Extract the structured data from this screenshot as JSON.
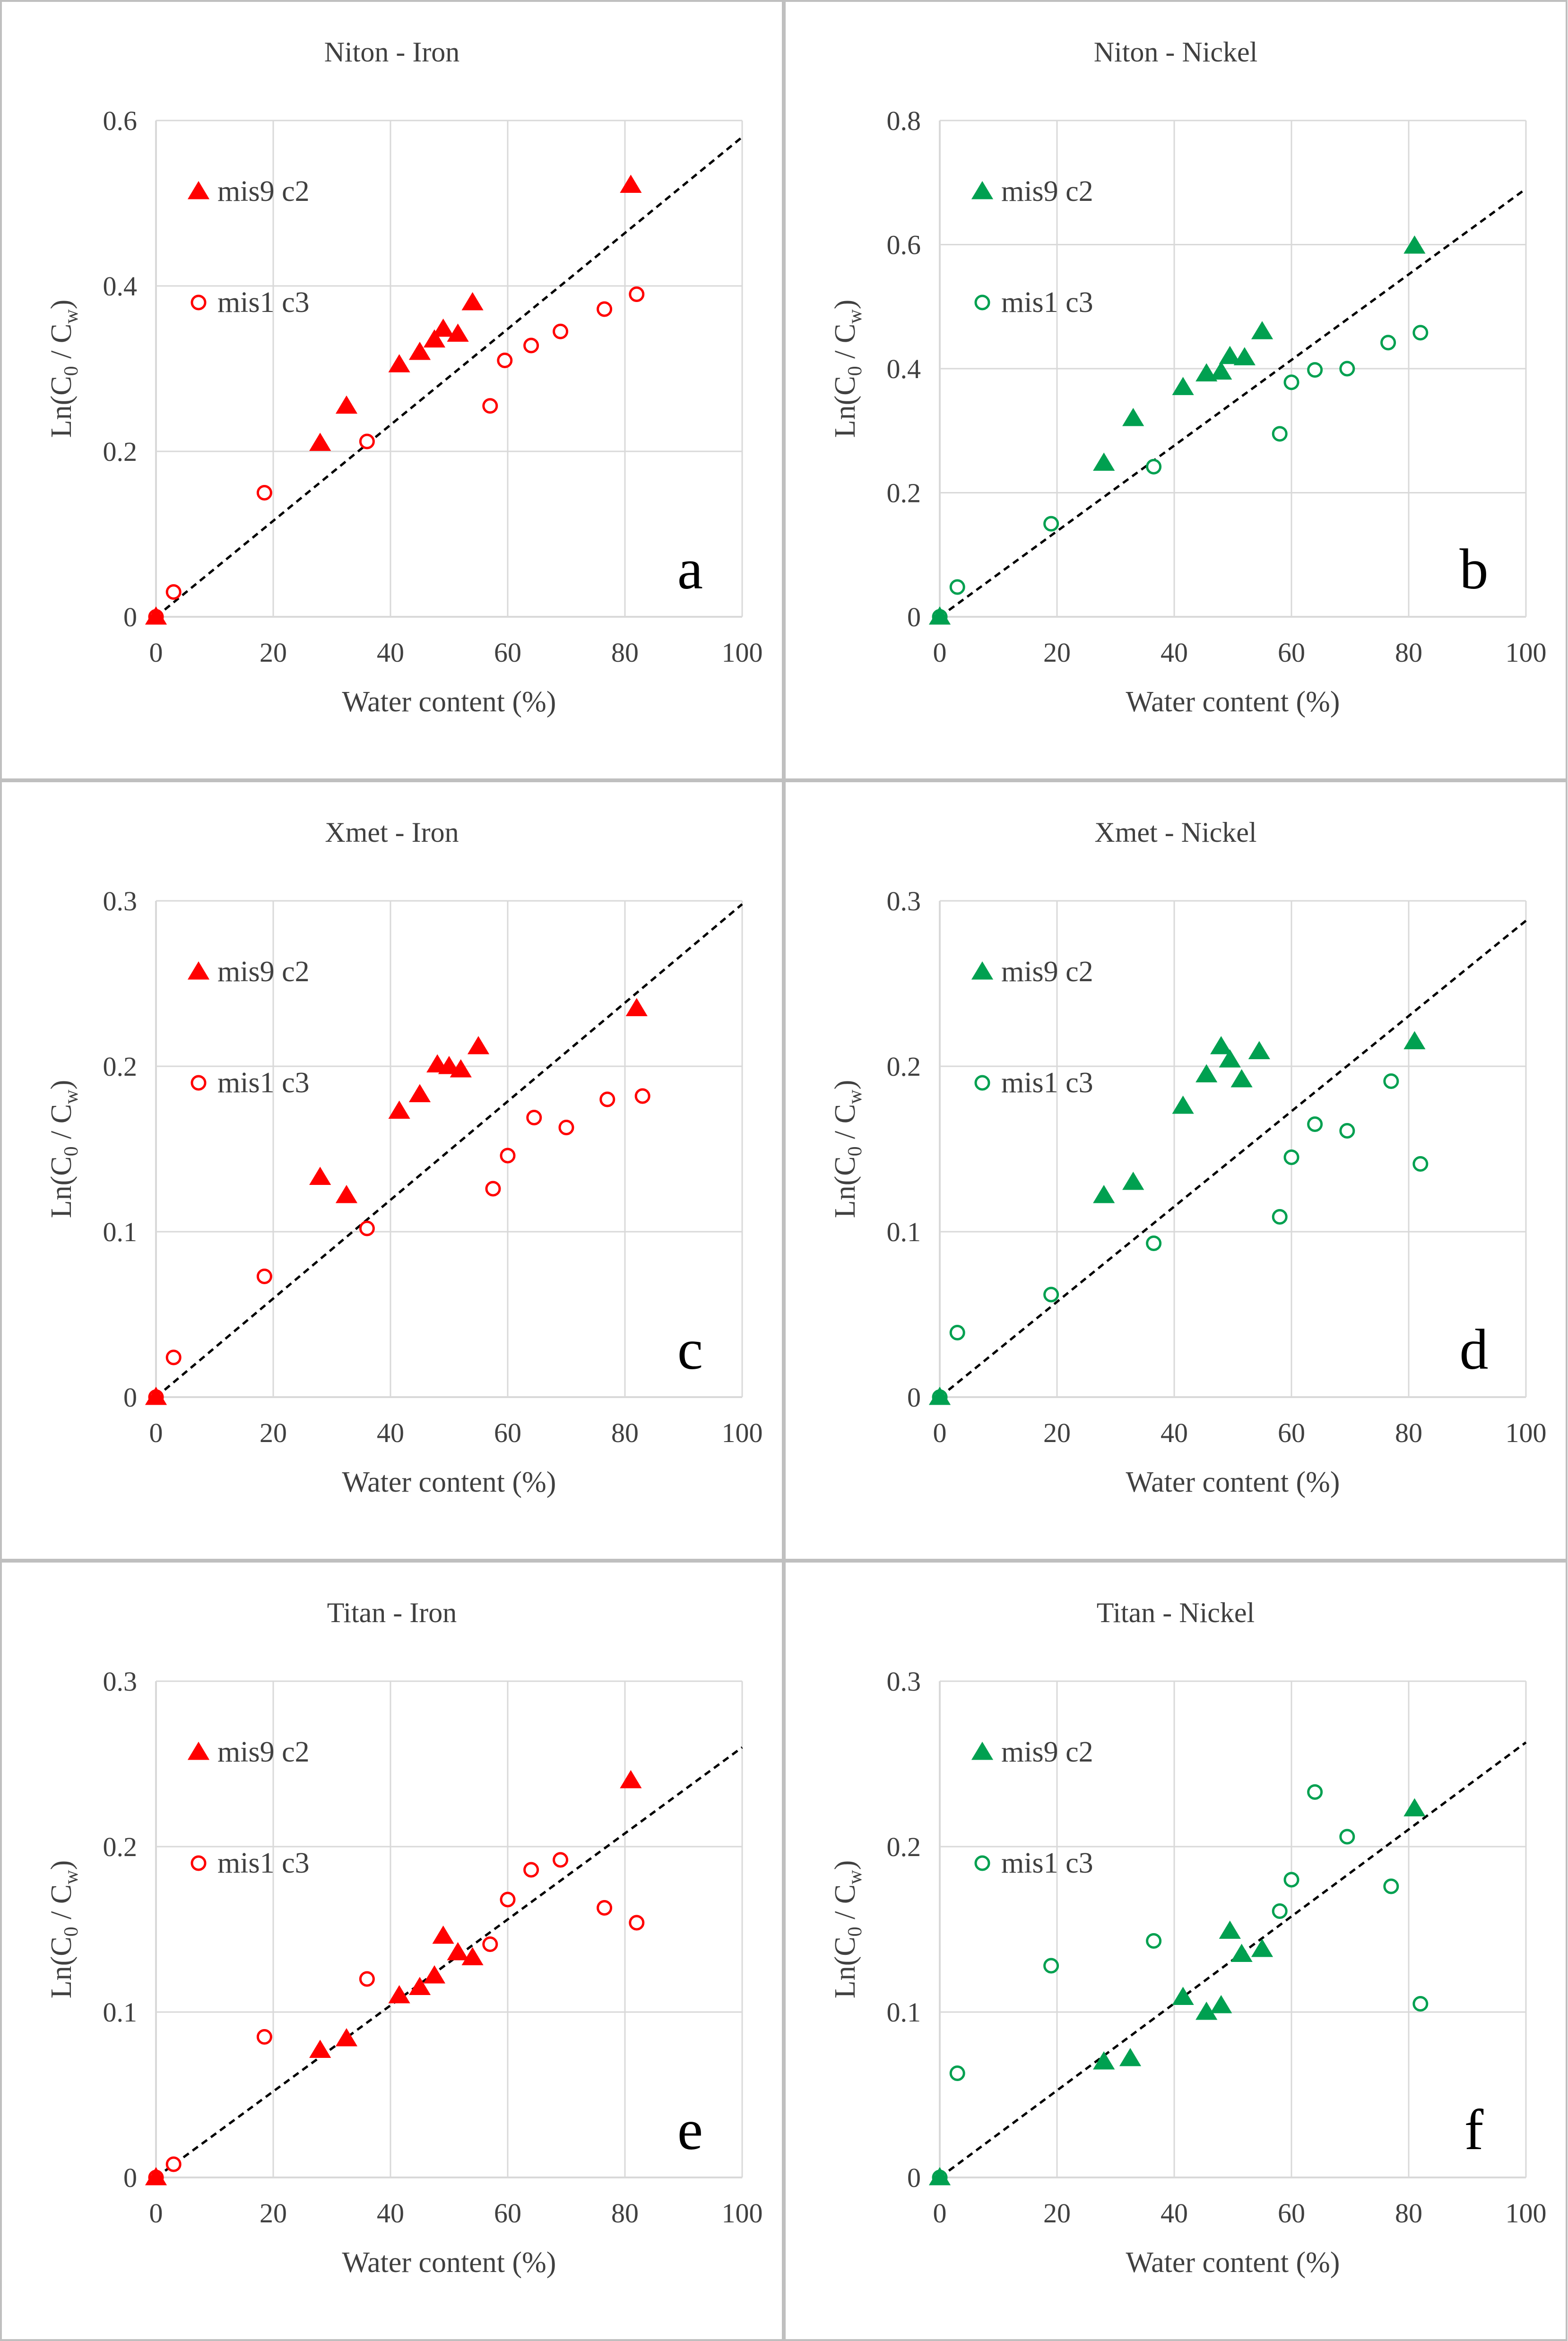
{
  "colors": {
    "iron": "#ff0000",
    "nickel": "#00a050",
    "grid": "#d9d9d9",
    "border": "#bfbfbf",
    "text": "#404040",
    "fit": "#000000"
  },
  "chart_data": [
    {
      "type": "scatter",
      "panel": "a",
      "title": "Niton - Iron",
      "xlabel": "Water content (%)",
      "ylabel": "Ln(C0 / Cw)",
      "xlim": [
        0,
        100
      ],
      "ylim": [
        0,
        0.6
      ],
      "xticks": [
        0,
        20,
        40,
        60,
        80,
        100
      ],
      "yticks": [
        0,
        0.2,
        0.4,
        0.6
      ],
      "xtick_labels": [
        "0",
        "20",
        "40",
        "60",
        "80",
        "100"
      ],
      "ytick_labels": [
        "0",
        "0.2",
        "0.4",
        "0.6"
      ],
      "legend": [
        "mis9 c2",
        "mis1 c3"
      ],
      "series": [
        {
          "name": "mis9 c2",
          "marker": "filled-triangle",
          "x": [
            0,
            28,
            32.5,
            41.5,
            45,
            47.5,
            49,
            51.5,
            54,
            81
          ],
          "y": [
            0,
            0.21,
            0.255,
            0.305,
            0.32,
            0.335,
            0.348,
            0.342,
            0.38,
            0.522
          ]
        },
        {
          "name": "mis1 c3",
          "marker": "open-circle",
          "x": [
            0,
            3,
            18.5,
            36,
            57,
            59.5,
            64,
            69,
            76.5,
            82
          ],
          "y": [
            0,
            0.03,
            0.15,
            0.212,
            0.255,
            0.31,
            0.328,
            0.345,
            0.372,
            0.39
          ]
        },
        {
          "name": "fit",
          "marker": "dashed-line",
          "x": [
            0,
            100
          ],
          "y": [
            0,
            0.58
          ]
        }
      ]
    },
    {
      "type": "scatter",
      "panel": "b",
      "title": "Niton - Nickel",
      "xlabel": "Water content (%)",
      "ylabel": "Ln(C0 / Cw)",
      "xlim": [
        0,
        100
      ],
      "ylim": [
        0,
        0.8
      ],
      "xticks": [
        0,
        20,
        40,
        60,
        80,
        100
      ],
      "yticks": [
        0,
        0.2,
        0.4,
        0.6,
        0.8
      ],
      "xtick_labels": [
        "0",
        "20",
        "40",
        "60",
        "80",
        "100"
      ],
      "ytick_labels": [
        "0",
        "0.2",
        "0.4",
        "0.6",
        "0.8"
      ],
      "legend": [
        "mis9 c2",
        "mis1 c3"
      ],
      "series": [
        {
          "name": "mis9 c2",
          "marker": "filled-triangle",
          "x": [
            0,
            28,
            33,
            41.5,
            45.5,
            48,
            49.5,
            52,
            55,
            81
          ],
          "y": [
            0,
            0.248,
            0.32,
            0.37,
            0.392,
            0.395,
            0.42,
            0.418,
            0.46,
            0.598
          ]
        },
        {
          "name": "mis1 c3",
          "marker": "open-circle",
          "x": [
            0,
            3,
            19,
            36.5,
            58,
            60,
            64,
            69.5,
            76.5,
            82
          ],
          "y": [
            0,
            0.048,
            0.15,
            0.242,
            0.295,
            0.378,
            0.398,
            0.4,
            0.442,
            0.458
          ]
        },
        {
          "name": "fit",
          "marker": "dashed-line",
          "x": [
            0,
            100
          ],
          "y": [
            0,
            0.69
          ]
        }
      ]
    },
    {
      "type": "scatter",
      "panel": "c",
      "title": "Xmet - Iron",
      "xlabel": "Water content (%)",
      "ylabel": "Ln(C0 / Cw)",
      "xlim": [
        0,
        100
      ],
      "ylim": [
        0,
        0.3
      ],
      "xticks": [
        0,
        20,
        40,
        60,
        80,
        100
      ],
      "yticks": [
        0,
        0.1,
        0.2,
        0.3
      ],
      "xtick_labels": [
        "0",
        "20",
        "40",
        "60",
        "80",
        "100"
      ],
      "ytick_labels": [
        "0",
        "0.1",
        "0.2",
        "0.3"
      ],
      "legend": [
        "mis9 c2",
        "mis1 c3"
      ],
      "series": [
        {
          "name": "mis9 c2",
          "marker": "filled-triangle",
          "x": [
            0,
            28,
            32.5,
            41.5,
            45,
            48,
            50,
            52,
            55,
            82
          ],
          "y": [
            0,
            0.133,
            0.122,
            0.173,
            0.183,
            0.201,
            0.2,
            0.198,
            0.212,
            0.235
          ]
        },
        {
          "name": "mis1 c3",
          "marker": "open-circle",
          "x": [
            0,
            3,
            18.5,
            36,
            57.5,
            60,
            64.5,
            70,
            77,
            83
          ],
          "y": [
            0,
            0.024,
            0.073,
            0.102,
            0.126,
            0.146,
            0.169,
            0.163,
            0.18,
            0.182
          ]
        },
        {
          "name": "fit",
          "marker": "dashed-line",
          "x": [
            0,
            100
          ],
          "y": [
            0,
            0.298
          ]
        }
      ]
    },
    {
      "type": "scatter",
      "panel": "d",
      "title": "Xmet - Nickel",
      "xlabel": "Water content (%)",
      "ylabel": "Ln(C0 / Cw)",
      "xlim": [
        0,
        100
      ],
      "ylim": [
        0,
        0.3
      ],
      "xticks": [
        0,
        20,
        40,
        60,
        80,
        100
      ],
      "yticks": [
        0,
        0.1,
        0.2,
        0.3
      ],
      "xtick_labels": [
        "0",
        "20",
        "40",
        "60",
        "80",
        "100"
      ],
      "ytick_labels": [
        "0",
        "0.1",
        "0.2",
        "0.3"
      ],
      "legend": [
        "mis9 c2",
        "mis1 c3"
      ],
      "series": [
        {
          "name": "mis9 c2",
          "marker": "filled-triangle",
          "x": [
            0,
            28,
            33,
            41.5,
            45.5,
            48,
            49.5,
            51.5,
            54.5,
            81
          ],
          "y": [
            0,
            0.122,
            0.13,
            0.176,
            0.195,
            0.212,
            0.204,
            0.192,
            0.209,
            0.215
          ]
        },
        {
          "name": "mis1 c3",
          "marker": "open-circle",
          "x": [
            0,
            3,
            19,
            36.5,
            58,
            60,
            64,
            69.5,
            77,
            82
          ],
          "y": [
            0,
            0.039,
            0.062,
            0.093,
            0.109,
            0.145,
            0.165,
            0.161,
            0.191,
            0.141
          ]
        },
        {
          "name": "fit",
          "marker": "dashed-line",
          "x": [
            0,
            100
          ],
          "y": [
            0,
            0.288
          ]
        }
      ]
    },
    {
      "type": "scatter",
      "panel": "e",
      "title": "Titan - Iron",
      "xlabel": "Water content (%)",
      "ylabel": "Ln(C0 / Cw)",
      "xlim": [
        0,
        100
      ],
      "ylim": [
        0,
        0.3
      ],
      "xticks": [
        0,
        20,
        40,
        60,
        80,
        100
      ],
      "yticks": [
        0,
        0.1,
        0.2,
        0.3
      ],
      "xtick_labels": [
        "0",
        "20",
        "40",
        "60",
        "80",
        "100"
      ],
      "ytick_labels": [
        "0",
        "0.1",
        "0.2",
        "0.3"
      ],
      "legend": [
        "mis9 c2",
        "mis1 c3"
      ],
      "series": [
        {
          "name": "mis9 c2",
          "marker": "filled-triangle",
          "x": [
            0,
            28,
            32.5,
            41.5,
            45,
            47.5,
            49,
            51.5,
            54,
            81
          ],
          "y": [
            0,
            0.077,
            0.084,
            0.11,
            0.115,
            0.122,
            0.146,
            0.136,
            0.133,
            0.24
          ]
        },
        {
          "name": "mis1 c3",
          "marker": "open-circle",
          "x": [
            0,
            3,
            18.5,
            36,
            57,
            60,
            64,
            69,
            76.5,
            82
          ],
          "y": [
            0,
            0.008,
            0.085,
            0.12,
            0.141,
            0.168,
            0.186,
            0.192,
            0.163,
            0.154
          ]
        },
        {
          "name": "fit",
          "marker": "dashed-line",
          "x": [
            0,
            100
          ],
          "y": [
            0,
            0.26
          ]
        }
      ]
    },
    {
      "type": "scatter",
      "panel": "f",
      "title": "Titan - Nickel",
      "xlabel": "Water content (%)",
      "ylabel": "Ln(C0 / Cw)",
      "xlim": [
        0,
        100
      ],
      "ylim": [
        0,
        0.3
      ],
      "xticks": [
        0,
        20,
        40,
        60,
        80,
        100
      ],
      "yticks": [
        0,
        0.1,
        0.2,
        0.3
      ],
      "xtick_labels": [
        "0",
        "20",
        "40",
        "60",
        "80",
        "100"
      ],
      "ytick_labels": [
        "0",
        "0.1",
        "0.2",
        "0.3"
      ],
      "legend": [
        "mis9 c2",
        "mis1 c3"
      ],
      "series": [
        {
          "name": "mis9 c2",
          "marker": "filled-triangle",
          "x": [
            0,
            28,
            32.5,
            41.5,
            45.5,
            48,
            49.5,
            51.5,
            55,
            81
          ],
          "y": [
            0,
            0.07,
            0.072,
            0.109,
            0.1,
            0.104,
            0.149,
            0.135,
            0.138,
            0.223
          ]
        },
        {
          "name": "mis1 c3",
          "marker": "open-circle",
          "x": [
            0,
            3,
            19,
            36.5,
            58,
            60,
            64,
            69.5,
            77,
            82
          ],
          "y": [
            0,
            0.063,
            0.128,
            0.143,
            0.161,
            0.18,
            0.233,
            0.206,
            0.176,
            0.105
          ]
        },
        {
          "name": "fit",
          "marker": "dashed-line",
          "x": [
            0,
            100
          ],
          "y": [
            0,
            0.263
          ]
        }
      ]
    }
  ]
}
